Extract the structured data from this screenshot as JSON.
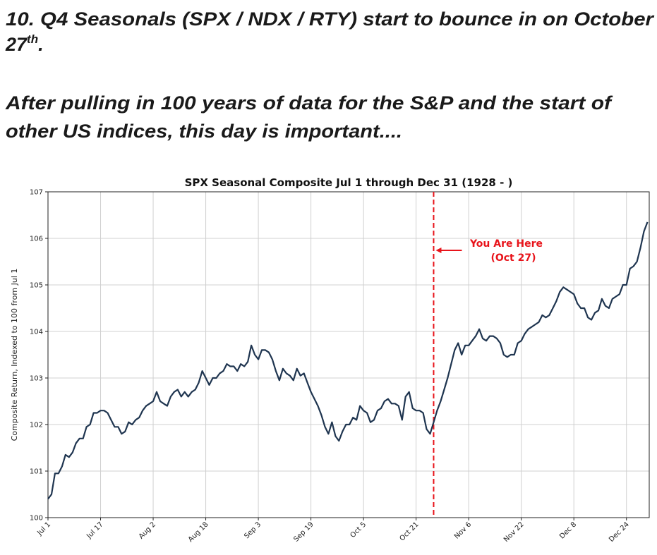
{
  "heading": {
    "line1": "10. Q4 Seasonals (SPX / NDX / RTY) start to bounce in on October",
    "line2": {
      "main": "27",
      "sup": "th",
      "end": "."
    },
    "line3": "After pulling in 100 years of data for the S&P and the start of",
    "line4": "other US indices, this day is important...."
  },
  "chart_data": {
    "type": "line",
    "title": "SPX Seasonal Composite Jul 1 through Dec 31 (1928 - )",
    "y_label": "Composite Return, Indexed to 100 from Jul 1",
    "x": [
      0,
      1,
      2,
      3,
      4,
      5,
      6,
      7,
      8,
      9,
      10,
      11,
      12,
      13,
      14,
      15,
      16,
      17,
      18,
      19,
      20,
      21,
      22,
      23,
      24,
      25,
      26,
      27,
      28,
      29,
      30,
      31,
      32,
      33,
      34,
      35,
      36,
      37,
      38,
      39,
      40,
      41,
      42,
      43,
      44,
      45,
      46,
      47,
      48,
      49,
      50,
      51,
      52,
      53,
      54,
      55,
      56,
      57,
      58,
      59,
      60,
      61,
      62,
      63,
      64,
      65,
      66,
      67,
      68,
      69,
      70,
      71,
      72,
      73,
      74,
      75,
      76,
      77,
      78,
      79,
      80,
      81,
      82,
      83,
      84,
      85,
      86,
      87,
      88,
      89,
      90,
      91,
      92,
      93,
      94,
      95,
      96,
      97,
      98,
      99,
      100,
      101,
      102,
      103,
      104,
      105,
      106,
      107,
      108,
      109,
      110,
      111,
      112,
      113,
      114,
      115,
      116,
      117,
      118,
      119,
      120,
      121,
      122,
      123,
      124,
      125,
      126,
      127,
      128,
      129,
      130,
      131,
      132,
      133,
      134,
      135,
      136,
      137,
      138,
      139,
      140,
      141,
      142,
      143,
      144,
      145,
      146,
      147,
      148,
      149,
      150,
      151,
      152,
      153,
      154,
      155,
      156,
      157,
      158,
      159,
      160,
      161,
      162,
      163,
      164,
      165,
      166,
      167,
      168,
      169,
      170,
      171
    ],
    "series": [
      {
        "name": "SPX",
        "color": "#1f3550",
        "values": [
          100.4,
          100.5,
          100.95,
          100.95,
          101.1,
          101.35,
          101.3,
          101.4,
          101.6,
          101.7,
          101.7,
          101.95,
          102.0,
          102.25,
          102.25,
          102.3,
          102.3,
          102.25,
          102.1,
          101.95,
          101.95,
          101.8,
          101.85,
          102.05,
          102.0,
          102.1,
          102.15,
          102.3,
          102.4,
          102.45,
          102.5,
          102.7,
          102.5,
          102.45,
          102.4,
          102.6,
          102.7,
          102.75,
          102.6,
          102.7,
          102.6,
          102.7,
          102.75,
          102.9,
          103.15,
          103.0,
          102.85,
          103.0,
          103.0,
          103.1,
          103.15,
          103.3,
          103.25,
          103.25,
          103.15,
          103.3,
          103.25,
          103.35,
          103.7,
          103.5,
          103.4,
          103.6,
          103.6,
          103.55,
          103.4,
          103.15,
          102.95,
          103.2,
          103.1,
          103.05,
          102.95,
          103.2,
          103.05,
          103.1,
          102.9,
          102.7,
          102.55,
          102.4,
          102.2,
          101.95,
          101.8,
          102.05,
          101.75,
          101.65,
          101.85,
          102.0,
          102.0,
          102.15,
          102.1,
          102.4,
          102.3,
          102.25,
          102.05,
          102.1,
          102.3,
          102.35,
          102.5,
          102.55,
          102.45,
          102.45,
          102.4,
          102.1,
          102.6,
          102.7,
          102.35,
          102.3,
          102.3,
          102.25,
          101.9,
          101.8,
          102.05,
          102.3,
          102.5,
          102.75,
          103.0,
          103.3,
          103.6,
          103.75,
          103.5,
          103.7,
          103.7,
          103.8,
          103.9,
          104.05,
          103.85,
          103.8,
          103.9,
          103.9,
          103.85,
          103.75,
          103.5,
          103.45,
          103.5,
          103.5,
          103.75,
          103.8,
          103.95,
          104.05,
          104.1,
          104.15,
          104.2,
          104.35,
          104.3,
          104.35,
          104.5,
          104.65,
          104.85,
          104.95,
          104.9,
          104.85,
          104.8,
          104.6,
          104.5,
          104.5,
          104.3,
          104.25,
          104.4,
          104.45,
          104.7,
          104.55,
          104.5,
          104.7,
          104.75,
          104.8,
          105.0,
          105.0,
          105.35,
          105.4,
          105.5,
          105.8,
          106.15,
          106.35
        ]
      }
    ],
    "xlim": [
      0,
      171.5
    ],
    "xticks": [
      {
        "value": 0,
        "label": "Jul 1"
      },
      {
        "value": 15,
        "label": "Jul 17"
      },
      {
        "value": 30,
        "label": "Aug 2"
      },
      {
        "value": 45,
        "label": "Aug 18"
      },
      {
        "value": 60,
        "label": "Sep 3"
      },
      {
        "value": 75,
        "label": "Sep 19"
      },
      {
        "value": 90,
        "label": "Oct 5"
      },
      {
        "value": 105,
        "label": "Oct 21"
      },
      {
        "value": 120,
        "label": "Nov 6"
      },
      {
        "value": 135,
        "label": "Nov 22"
      },
      {
        "value": 150,
        "label": "Dec 8"
      },
      {
        "value": 165,
        "label": "Dec 24"
      }
    ],
    "ylim": [
      100,
      107
    ],
    "yticks": [
      100,
      101,
      102,
      103,
      104,
      105,
      106,
      107
    ],
    "grid": true,
    "vline": {
      "x": 110,
      "color": "#e8141b",
      "label1": "You Are Here",
      "label2": "(Oct 27)"
    }
  }
}
